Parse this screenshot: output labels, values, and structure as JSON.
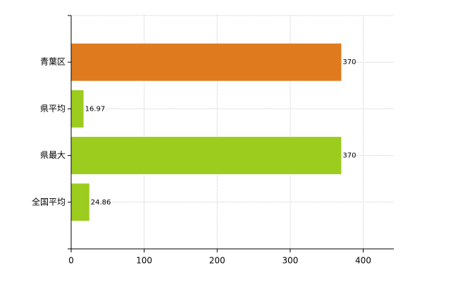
{
  "chart_data": {
    "type": "bar",
    "orientation": "horizontal",
    "categories": [
      "青葉区",
      "県平均",
      "県最大",
      "全国平均"
    ],
    "values": [
      370,
      16.97,
      370,
      24.86
    ],
    "colors": [
      "#e07a1f",
      "#9ccc1e",
      "#9ccc1e",
      "#9ccc1e"
    ],
    "xlim": [
      0,
      442
    ],
    "xticks": [
      0,
      100,
      200,
      300,
      400
    ],
    "grid": true
  }
}
